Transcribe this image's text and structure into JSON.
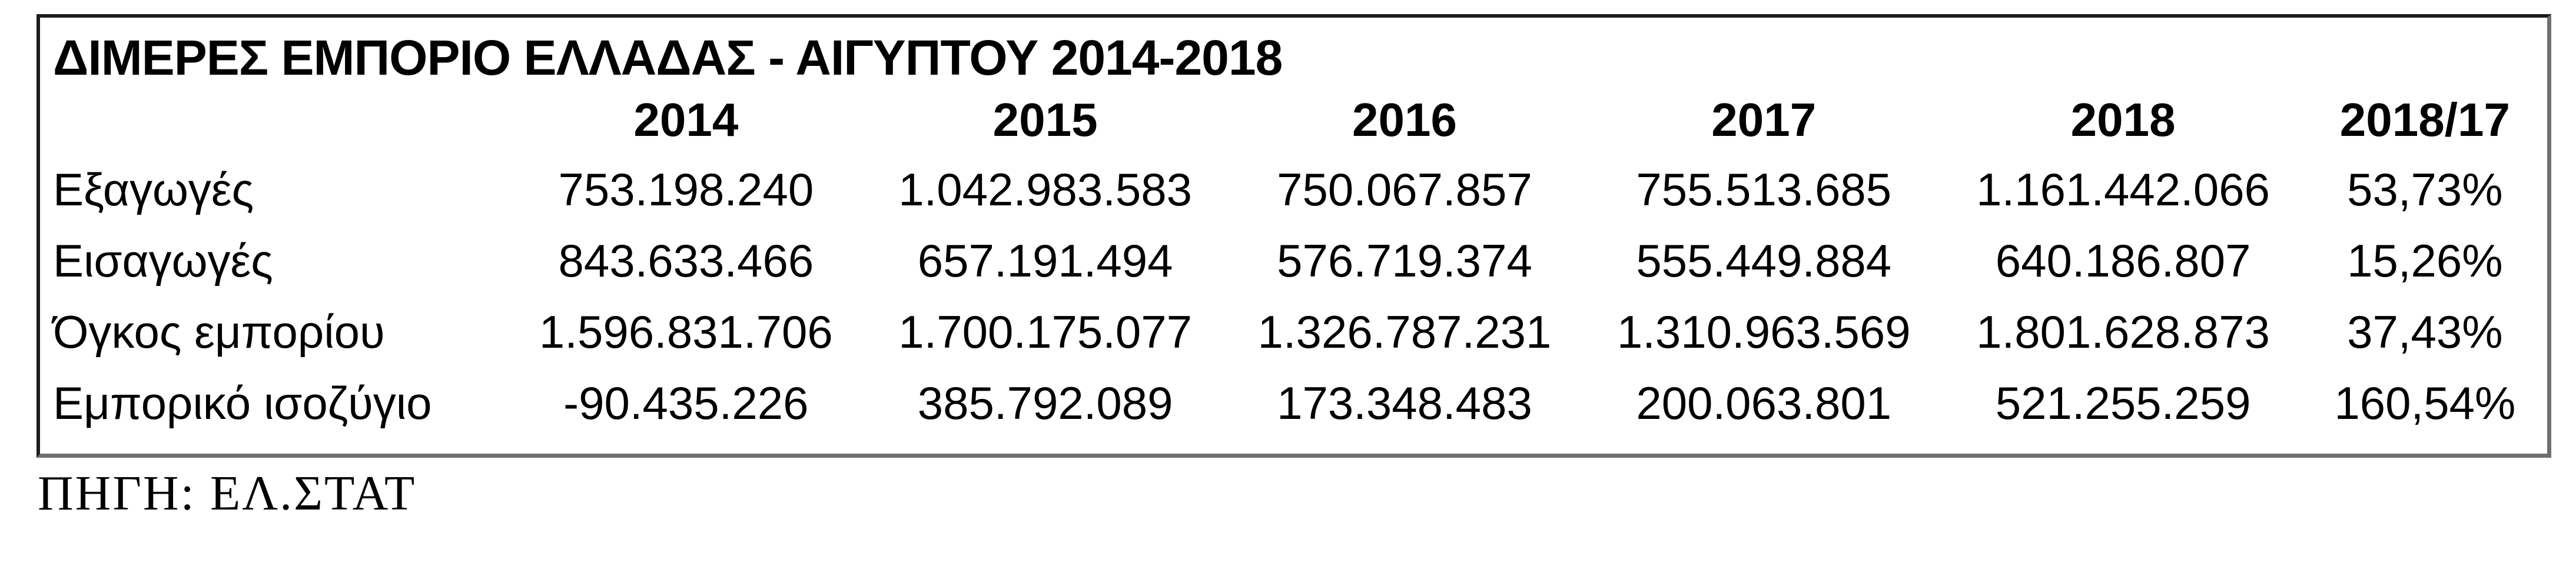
{
  "colors": {
    "background": "#ffffff",
    "text": "#000000",
    "border_dark": "#1c1c1c",
    "border_shadow": "#6f6f6f"
  },
  "table": {
    "title": "ΔΙΜΕΡΕΣ ΕΜΠΟΡΙΟ ΕΛΛΑΔΑΣ - ΑΙΓΥΠΤΟΥ 2014-2018",
    "columns": [
      "2014",
      "2015",
      "2016",
      "2017",
      "2018",
      "2018/17"
    ],
    "rows": [
      {
        "label": "Εξαγωγές",
        "values": [
          "753.198.240",
          "1.042.983.583",
          "750.067.857",
          "755.513.685",
          "1.161.442.066",
          "53,73%"
        ]
      },
      {
        "label": "Εισαγωγές",
        "values": [
          "843.633.466",
          "657.191.494",
          "576.719.374",
          "555.449.884",
          "640.186.807",
          "15,26%"
        ]
      },
      {
        "label": "Όγκος εμπορίου",
        "values": [
          "1.596.831.706",
          "1.700.175.077",
          "1.326.787.231",
          "1.310.963.569",
          "1.801.628.873",
          "37,43%"
        ]
      },
      {
        "label": "Εμπορικό ισοζύγιο",
        "values": [
          "-90.435.226",
          "385.792.089",
          "173.348.483",
          "200.063.801",
          "521.255.259",
          "160,54%"
        ]
      }
    ]
  },
  "source_note": "ΠΗΓΗ: ΕΛ.ΣΤΑΤ"
}
